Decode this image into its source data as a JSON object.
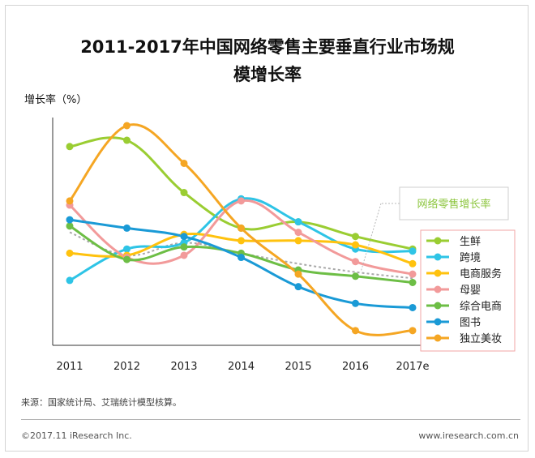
{
  "header": {
    "title_line1": "2011-2017年中国网络零售主要垂直行业市场规",
    "title_line2": "模增长率"
  },
  "footer": {
    "source": "来源：国家统计局、艾瑞统计模型核算。",
    "copyright": "©2017.11 iResearch Inc.",
    "website": "www.iresearch.com.cn"
  },
  "chart_data": {
    "type": "line",
    "ylabel": "增长率（%）",
    "x": [
      "2011",
      "2012",
      "2013",
      "2014",
      "2015",
      "2016",
      "2017e"
    ],
    "ylim": [
      0,
      100
    ],
    "axis_ticks_labeled": false,
    "grid": false,
    "legend_position": "right",
    "series": [
      {
        "name": "生鲜",
        "color": "#9ACD32",
        "values": [
          90,
          93,
          68,
          51,
          54,
          47,
          41
        ]
      },
      {
        "name": "跨境",
        "color": "#2EC4E6",
        "values": [
          26,
          41,
          44,
          65,
          54,
          41,
          40
        ]
      },
      {
        "name": "电商服务",
        "color": "#FFC20E",
        "values": [
          39,
          38,
          48,
          45,
          45,
          43,
          34
        ]
      },
      {
        "name": "母婴",
        "color": "#F29A9A",
        "values": [
          62,
          37,
          38,
          64,
          49,
          35,
          29
        ]
      },
      {
        "name": "综合电商",
        "color": "#6DBE45",
        "values": [
          52,
          36,
          42,
          39,
          31,
          28,
          25
        ]
      },
      {
        "name": "图书",
        "color": "#1A9AD6",
        "values": [
          55,
          51,
          47,
          37,
          23,
          15,
          13
        ]
      },
      {
        "name": "独立美妆",
        "color": "#F5A623",
        "values": [
          64,
          100,
          82,
          51,
          29,
          2,
          2
        ]
      },
      {
        "name": "网络零售增长率",
        "color": "#A8A8A8",
        "dashed": true,
        "values": [
          49,
          38,
          44,
          39,
          34,
          30,
          27
        ]
      }
    ],
    "annotation": "网络零售增长率"
  }
}
